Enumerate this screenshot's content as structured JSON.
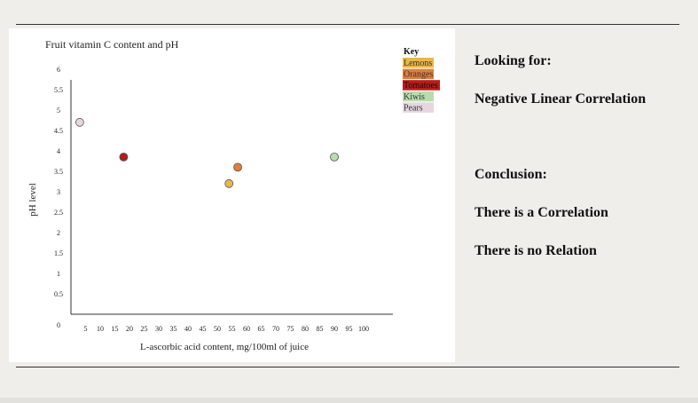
{
  "chart_data": {
    "type": "scatter",
    "title": "Fruit vitamin C content and pH",
    "xlabel": "L-ascorbic acid content, mg/100ml of juice",
    "ylabel": "pH level",
    "xlim": [
      0,
      100
    ],
    "ylim": [
      0,
      6
    ],
    "x_ticks": [
      "5",
      "10",
      "15",
      "20",
      "25",
      "30",
      "35",
      "40",
      "45",
      "50",
      "55",
      "60",
      "65",
      "70",
      "75",
      "80",
      "85",
      "90",
      "95",
      "100"
    ],
    "y_ticks": [
      "0",
      "0.5",
      "1",
      "1.5",
      "2",
      "2.5",
      "3",
      "3.5",
      "4",
      "4.5",
      "5",
      "5.5",
      "6"
    ],
    "grid": false,
    "legend_title": "Key",
    "legend_position": "top-right",
    "series": [
      {
        "name": "Lemons",
        "color": "#e6b84a",
        "points": [
          {
            "x": 54,
            "y": 3.2
          }
        ]
      },
      {
        "name": "Oranges",
        "color": "#e07e3c",
        "points": [
          {
            "x": 57,
            "y": 3.6
          }
        ]
      },
      {
        "name": "Tomatoes",
        "color": "#b71c1c",
        "points": [
          {
            "x": 18,
            "y": 3.85
          }
        ]
      },
      {
        "name": "Kiwis",
        "color": "#b9dcae",
        "points": [
          {
            "x": 90,
            "y": 3.85
          }
        ]
      },
      {
        "name": "Pears",
        "color": "#e6d6e0",
        "points": [
          {
            "x": 3,
            "y": 4.7
          }
        ]
      }
    ]
  },
  "side": {
    "looking_for": "Looking for:",
    "negative": "Negative Linear Correlation",
    "conclusion": "Conclusion:",
    "correlation": "There is a Correlation",
    "no_relation": "There is no Relation"
  }
}
